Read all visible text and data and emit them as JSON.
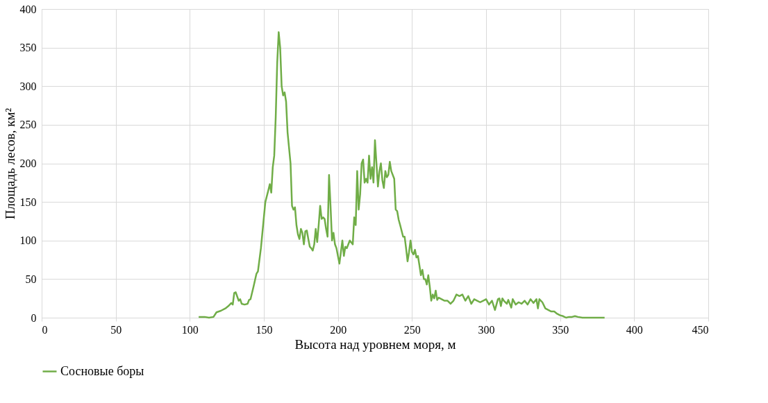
{
  "chart_data": {
    "type": "line",
    "xlabel": "Высота над уровнем моря, м",
    "ylabel": "Площадь лесов, км²",
    "xlim": [
      0,
      450
    ],
    "xticks": [
      0,
      50,
      100,
      150,
      200,
      250,
      300,
      350,
      400,
      450
    ],
    "ylim": [
      0,
      400
    ],
    "yticks": [
      0,
      50,
      100,
      150,
      200,
      250,
      300,
      350,
      400
    ],
    "grid": true,
    "legend": "bottom",
    "marker": "none",
    "line_style": "solid",
    "series": [
      {
        "name": "Сосновые боры",
        "color": "#70ad47",
        "x": [
          106,
          110,
          113,
          116,
          118,
          121,
          124,
          126,
          128,
          129,
          130,
          131,
          133,
          134,
          135,
          137,
          139,
          140,
          141,
          143,
          145,
          146,
          148,
          150,
          151,
          153,
          154,
          155,
          156,
          157,
          158,
          159,
          160,
          161,
          162,
          163,
          164,
          165,
          166,
          168,
          169,
          170,
          171,
          172,
          173,
          174,
          175,
          176,
          177,
          178,
          179,
          180,
          181,
          182,
          183,
          184,
          185,
          186,
          187,
          188,
          189,
          190,
          191,
          192,
          193,
          194,
          195,
          196,
          197,
          198,
          199,
          200,
          201,
          202,
          203,
          204,
          205,
          206,
          207,
          208,
          210,
          211,
          212,
          213,
          214,
          215,
          216,
          217,
          218,
          219,
          220,
          221,
          222,
          223,
          224,
          225,
          226,
          227,
          228,
          229,
          230,
          231,
          232,
          233,
          234,
          235,
          236,
          238,
          239,
          240,
          241,
          242,
          244,
          245,
          246,
          247,
          248,
          249,
          250,
          251,
          252,
          253,
          254,
          255,
          256,
          257,
          258,
          259,
          260,
          261,
          262,
          263,
          264,
          265,
          266,
          267,
          268,
          270,
          272,
          274,
          276,
          278,
          280,
          282,
          284,
          286,
          288,
          290,
          292,
          294,
          296,
          298,
          300,
          302,
          304,
          306,
          308,
          309,
          310,
          311,
          312,
          314,
          315,
          317,
          318,
          320,
          322,
          324,
          326,
          328,
          330,
          332,
          334,
          335,
          336,
          338,
          340,
          342,
          344,
          346,
          348,
          350,
          352,
          354,
          356,
          358,
          360,
          362,
          365,
          370,
          375,
          380
        ],
        "values": [
          1,
          1,
          0,
          1,
          7,
          9,
          12,
          15,
          19,
          17,
          32,
          33,
          22,
          24,
          18,
          17,
          18,
          23,
          24,
          40,
          57,
          60,
          90,
          130,
          150,
          165,
          173,
          162,
          195,
          210,
          260,
          330,
          370,
          350,
          300,
          288,
          292,
          280,
          240,
          200,
          145,
          140,
          143,
          120,
          108,
          102,
          115,
          110,
          95,
          112,
          113,
          102,
          92,
          90,
          87,
          95,
          115,
          98,
          120,
          145,
          128,
          130,
          128,
          115,
          105,
          185,
          145,
          100,
          110,
          95,
          90,
          80,
          70,
          85,
          100,
          80,
          92,
          90,
          95,
          100,
          95,
          130,
          120,
          190,
          140,
          160,
          200,
          205,
          175,
          180,
          175,
          210,
          180,
          195,
          175,
          230,
          200,
          170,
          190,
          200,
          178,
          168,
          190,
          182,
          185,
          202,
          190,
          180,
          140,
          138,
          127,
          120,
          105,
          105,
          90,
          73,
          85,
          100,
          85,
          82,
          88,
          78,
          80,
          68,
          55,
          62,
          50,
          50,
          43,
          55,
          40,
          22,
          30,
          25,
          35,
          23,
          26,
          24,
          22,
          22,
          18,
          22,
          30,
          28,
          30,
          22,
          28,
          18,
          24,
          22,
          20,
          22,
          24,
          17,
          22,
          10,
          24,
          25,
          15,
          25,
          22,
          18,
          23,
          13,
          24,
          17,
          20,
          18,
          22,
          17,
          24,
          19,
          24,
          12,
          24,
          20,
          12,
          10,
          8,
          8,
          5,
          3,
          2,
          0,
          1,
          1,
          2,
          1,
          0,
          0,
          0,
          0
        ]
      }
    ]
  }
}
